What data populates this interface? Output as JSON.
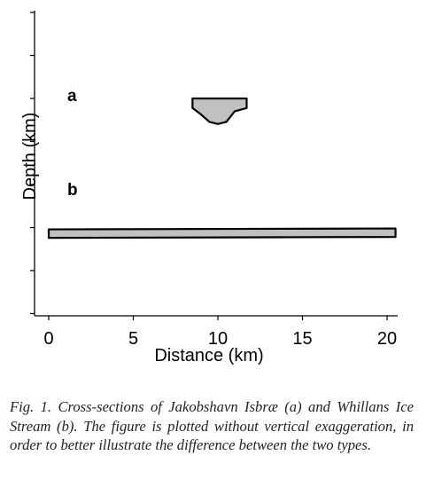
{
  "figure": {
    "xlabel": "Distance (km)",
    "ylabel": "Depth (km)",
    "panel_labels": [
      "a",
      "b"
    ],
    "fill_color": "#c0c0c0",
    "outline_color": "#000000"
  },
  "chart_data": {
    "type": "area",
    "title": "",
    "xlabel": "Distance (km)",
    "ylabel": "Depth (km)",
    "x_ticks": [
      "0",
      "5",
      "10",
      "15",
      "20"
    ],
    "xlim": [
      0,
      20.5
    ],
    "y_tick_count": 8,
    "y_ticks_labeled": false,
    "grid": false,
    "series": [
      {
        "name": "a",
        "description_visible": false,
        "x_start": 8.5,
        "x_end": 11.7,
        "bottom_profile_x": [
          8.5,
          9.0,
          9.5,
          10.0,
          10.5,
          11.0,
          11.7
        ],
        "bottom_profile_depth_ticks": [
          0.45,
          0.75,
          1.1,
          1.2,
          1.1,
          0.6,
          0.45
        ]
      },
      {
        "name": "b",
        "description_visible": false,
        "x_start": 0,
        "x_end": 20.5,
        "top_depth_ticks": [
          4.3,
          4.3
        ],
        "bottom_depth_ticks": [
          4.6,
          4.6
        ]
      }
    ]
  },
  "caption": "Fig. 1. Cross-sections of Jakobshavn Isbræ (a) and Whillans Ice Stream (b). The figure is plotted without vertical exaggeration, in order to better illustrate the difference between the two types."
}
